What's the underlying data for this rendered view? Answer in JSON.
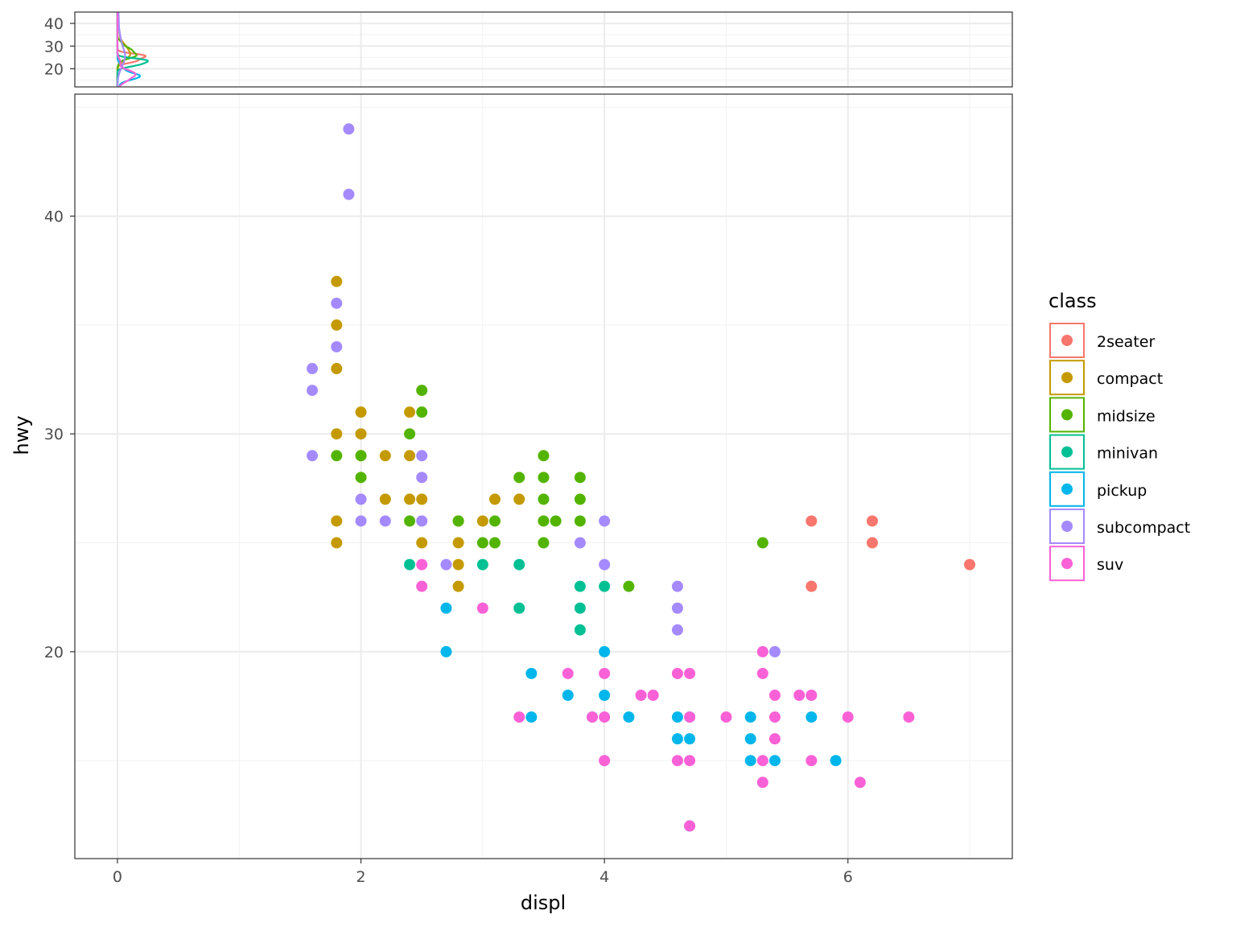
{
  "chart_data": {
    "type": "scatter",
    "title": "",
    "xlabel": "displ",
    "ylabel": "hwy",
    "xlim": [
      -0.35,
      7.35
    ],
    "ylim": [
      10.5,
      45.6
    ],
    "x_ticks": [
      0,
      2,
      4,
      6
    ],
    "y_ticks": [
      20,
      30,
      40
    ],
    "grid": true,
    "legend": {
      "title": "class",
      "position": "right"
    },
    "marginal": {
      "type": "density",
      "orientation": "y-values vs density",
      "y_ticks": [
        20,
        30,
        40
      ],
      "ylim": [
        12,
        45
      ],
      "xlim": [
        -0.35,
        7.35
      ],
      "density_peak": 0.25
    },
    "series": [
      {
        "name": "2seater",
        "color": "#F8766D",
        "points": [
          [
            5.7,
            26
          ],
          [
            5.7,
            23
          ],
          [
            6.2,
            26
          ],
          [
            6.2,
            25
          ],
          [
            7.0,
            24
          ]
        ]
      },
      {
        "name": "compact",
        "color": "#C49A00",
        "points": [
          [
            1.8,
            37
          ],
          [
            1.8,
            35
          ],
          [
            1.8,
            33
          ],
          [
            1.8,
            30
          ],
          [
            1.8,
            26
          ],
          [
            1.8,
            25
          ],
          [
            2.0,
            31
          ],
          [
            2.0,
            30
          ],
          [
            2.0,
            29
          ],
          [
            2.2,
            29
          ],
          [
            2.2,
            27
          ],
          [
            2.4,
            31
          ],
          [
            2.4,
            29
          ],
          [
            2.4,
            27
          ],
          [
            2.5,
            27
          ],
          [
            2.5,
            25
          ],
          [
            2.8,
            26
          ],
          [
            2.8,
            25
          ],
          [
            2.8,
            24
          ],
          [
            2.8,
            23
          ],
          [
            3.0,
            26
          ],
          [
            3.1,
            27
          ],
          [
            3.3,
            27
          ]
        ]
      },
      {
        "name": "midsize",
        "color": "#53B400",
        "points": [
          [
            1.8,
            29
          ],
          [
            2.0,
            29
          ],
          [
            2.0,
            28
          ],
          [
            2.4,
            30
          ],
          [
            2.4,
            26
          ],
          [
            2.5,
            32
          ],
          [
            2.5,
            31
          ],
          [
            2.8,
            26
          ],
          [
            3.0,
            25
          ],
          [
            3.1,
            26
          ],
          [
            3.1,
            25
          ],
          [
            3.3,
            28
          ],
          [
            3.5,
            29
          ],
          [
            3.5,
            28
          ],
          [
            3.5,
            27
          ],
          [
            3.5,
            26
          ],
          [
            3.5,
            25
          ],
          [
            3.6,
            26
          ],
          [
            3.8,
            28
          ],
          [
            3.8,
            27
          ],
          [
            3.8,
            26
          ],
          [
            4.2,
            23
          ],
          [
            5.3,
            25
          ]
        ]
      },
      {
        "name": "minivan",
        "color": "#00C094",
        "points": [
          [
            2.4,
            24
          ],
          [
            3.0,
            24
          ],
          [
            3.3,
            24
          ],
          [
            3.3,
            22
          ],
          [
            3.8,
            23
          ],
          [
            3.8,
            22
          ],
          [
            3.8,
            21
          ],
          [
            4.0,
            23
          ]
        ]
      },
      {
        "name": "pickup",
        "color": "#00B6EB",
        "points": [
          [
            2.7,
            22
          ],
          [
            2.7,
            20
          ],
          [
            3.4,
            19
          ],
          [
            3.4,
            17
          ],
          [
            3.7,
            18
          ],
          [
            3.9,
            17
          ],
          [
            4.0,
            20
          ],
          [
            4.0,
            18
          ],
          [
            4.2,
            17
          ],
          [
            4.6,
            17
          ],
          [
            4.6,
            16
          ],
          [
            4.7,
            17
          ],
          [
            4.7,
            16
          ],
          [
            4.7,
            12
          ],
          [
            5.2,
            17
          ],
          [
            5.2,
            16
          ],
          [
            5.2,
            15
          ],
          [
            5.4,
            15
          ],
          [
            5.7,
            17
          ],
          [
            5.9,
            15
          ]
        ]
      },
      {
        "name": "subcompact",
        "color": "#A58AFF",
        "points": [
          [
            1.6,
            33
          ],
          [
            1.6,
            32
          ],
          [
            1.6,
            29
          ],
          [
            1.8,
            36
          ],
          [
            1.8,
            34
          ],
          [
            1.9,
            44
          ],
          [
            1.9,
            41
          ],
          [
            2.0,
            27
          ],
          [
            2.0,
            26
          ],
          [
            2.2,
            26
          ],
          [
            2.5,
            29
          ],
          [
            2.5,
            28
          ],
          [
            2.5,
            26
          ],
          [
            2.7,
            24
          ],
          [
            3.8,
            25
          ],
          [
            4.0,
            26
          ],
          [
            4.0,
            24
          ],
          [
            4.6,
            23
          ],
          [
            4.6,
            22
          ],
          [
            4.6,
            21
          ],
          [
            5.4,
            20
          ]
        ]
      },
      {
        "name": "suv",
        "color": "#FB61D7",
        "points": [
          [
            2.5,
            24
          ],
          [
            2.5,
            23
          ],
          [
            3.0,
            22
          ],
          [
            3.3,
            17
          ],
          [
            3.7,
            19
          ],
          [
            3.9,
            17
          ],
          [
            4.0,
            19
          ],
          [
            4.0,
            17
          ],
          [
            4.0,
            15
          ],
          [
            4.3,
            18
          ],
          [
            4.4,
            18
          ],
          [
            4.6,
            19
          ],
          [
            4.6,
            15
          ],
          [
            4.7,
            19
          ],
          [
            4.7,
            17
          ],
          [
            4.7,
            15
          ],
          [
            4.7,
            12
          ],
          [
            5.0,
            17
          ],
          [
            5.3,
            20
          ],
          [
            5.3,
            19
          ],
          [
            5.3,
            15
          ],
          [
            5.3,
            14
          ],
          [
            5.4,
            18
          ],
          [
            5.4,
            17
          ],
          [
            5.4,
            16
          ],
          [
            5.6,
            18
          ],
          [
            5.7,
            18
          ],
          [
            5.7,
            15
          ],
          [
            6.0,
            17
          ],
          [
            6.1,
            14
          ],
          [
            6.5,
            17
          ]
        ]
      }
    ]
  }
}
